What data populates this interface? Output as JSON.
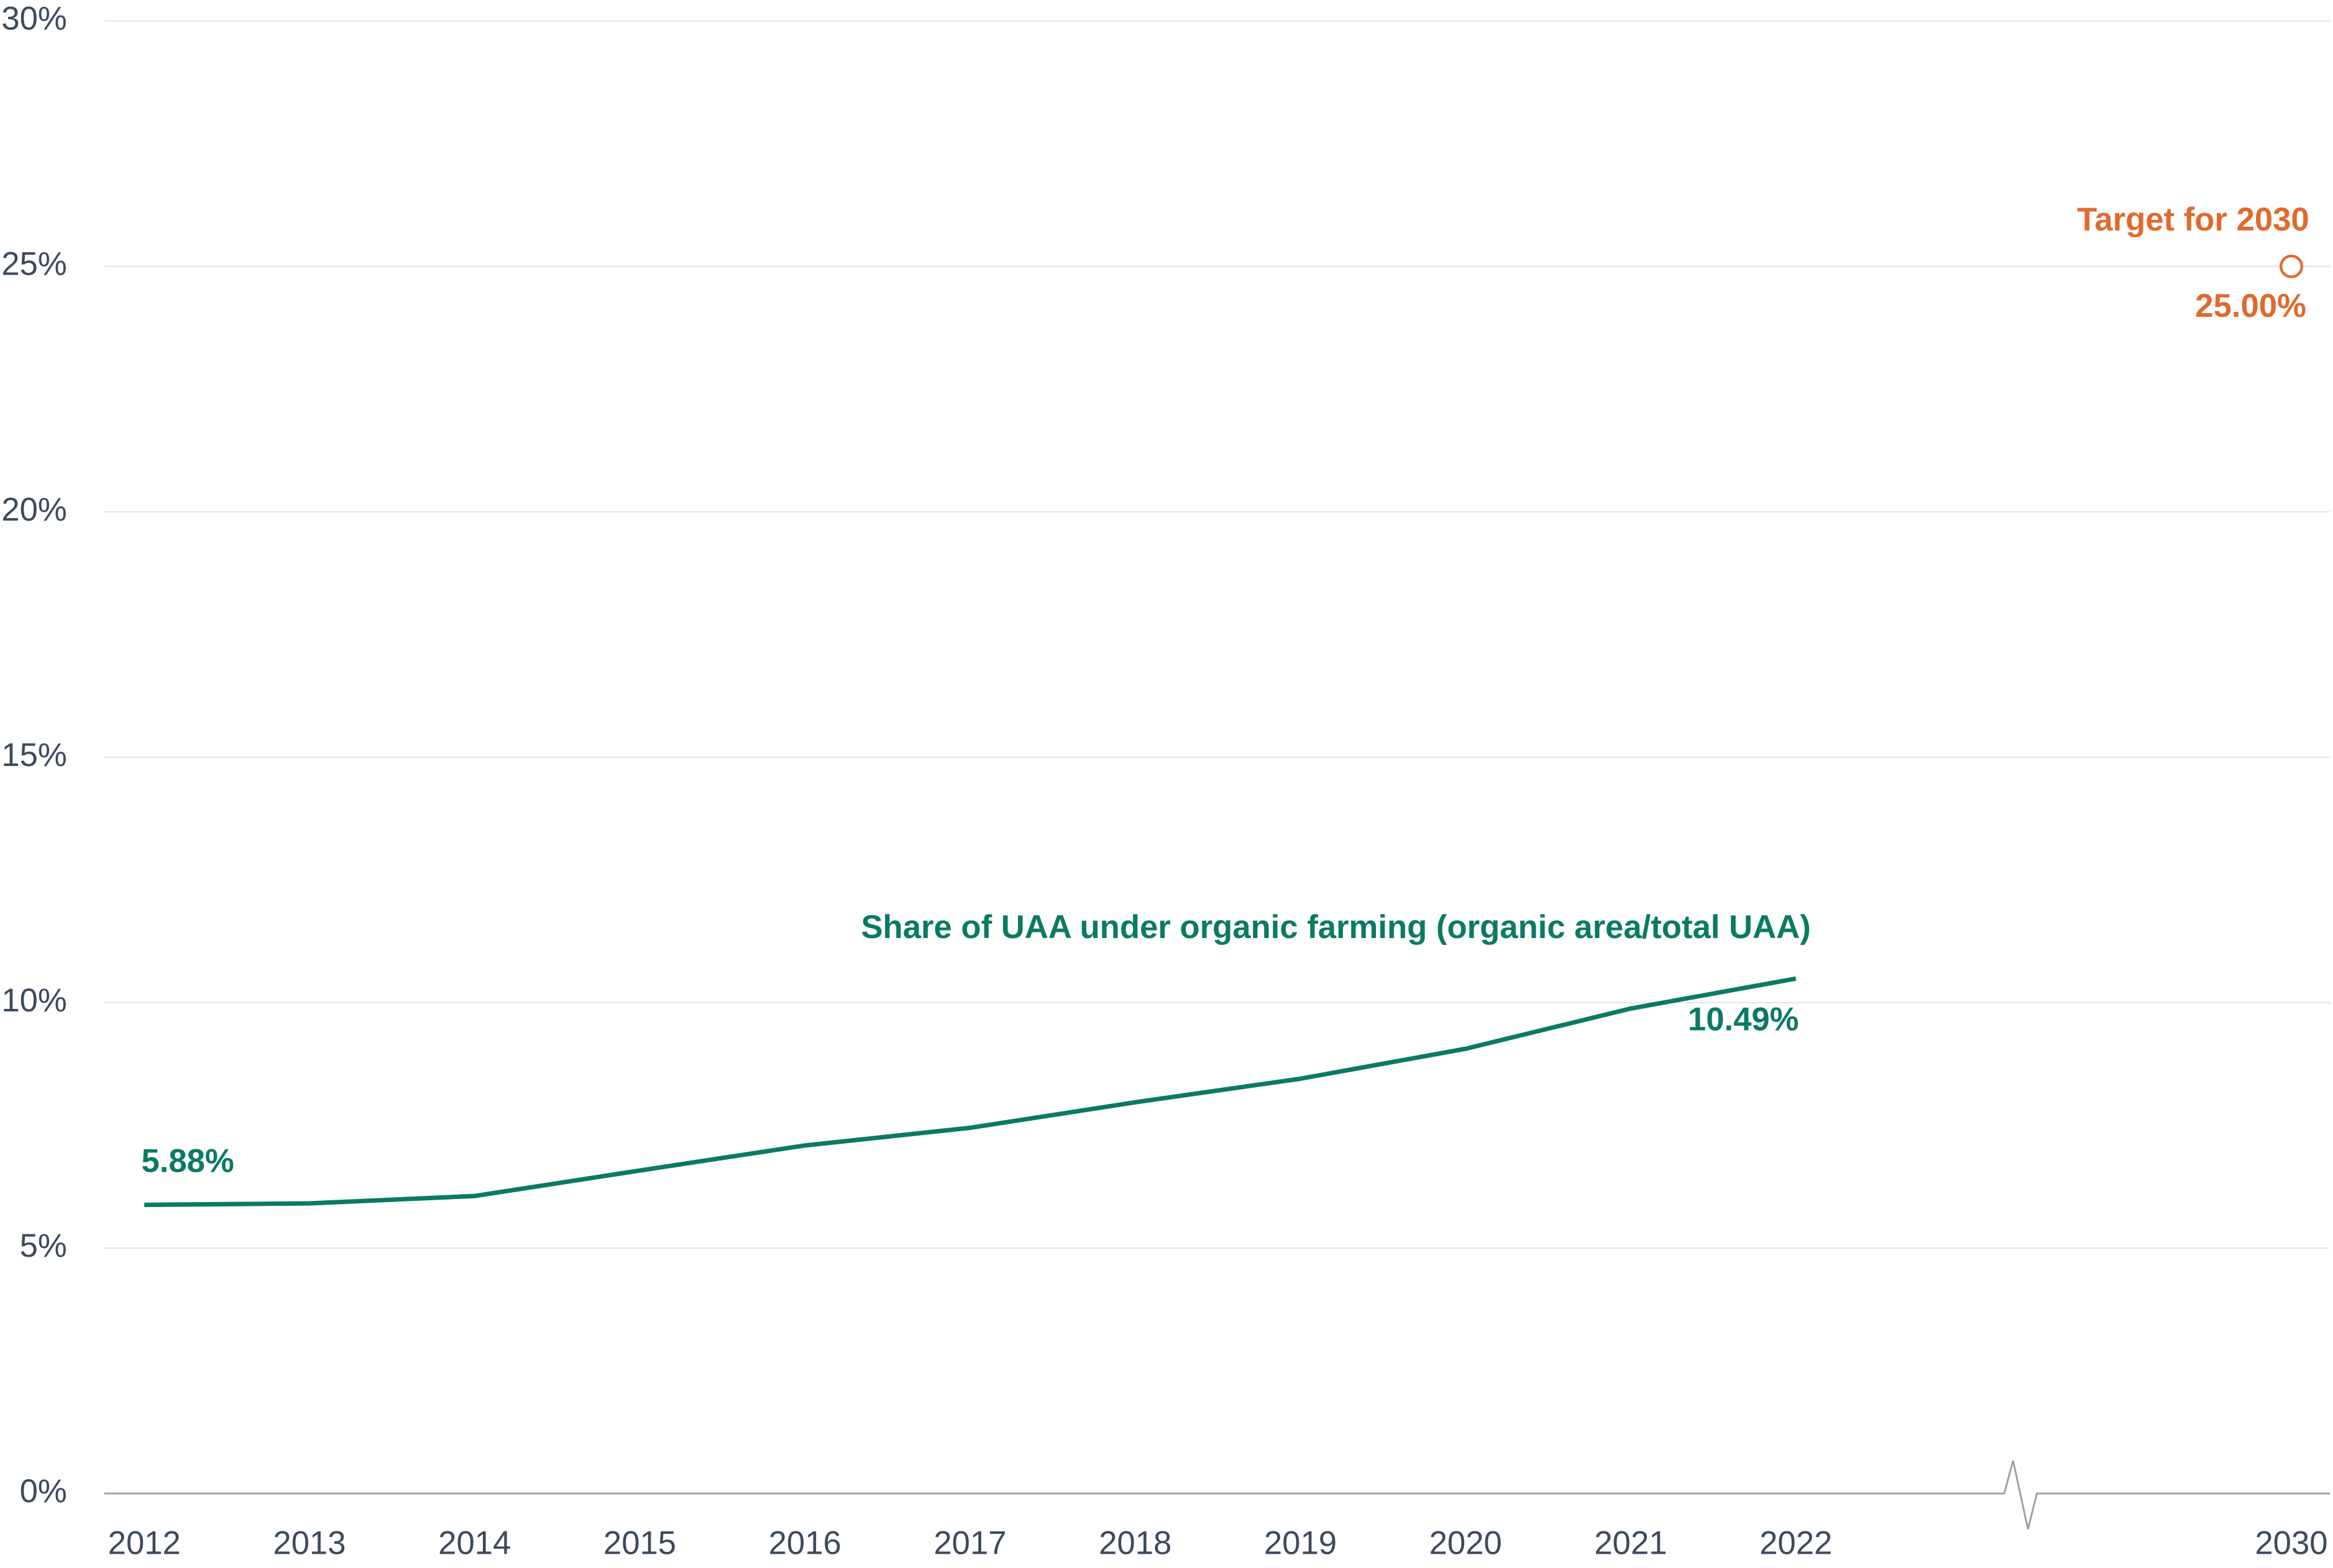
{
  "chart_data": {
    "type": "line",
    "categories": [
      "2012",
      "2013",
      "2014",
      "2015",
      "2016",
      "2017",
      "2018",
      "2019",
      "2020",
      "2021",
      "2022",
      "2030"
    ],
    "series": [
      {
        "name": "Share of UAA under organic farming (organic area/total UAA)",
        "color": "#0b7a63",
        "values": [
          5.88,
          5.91,
          6.06,
          6.58,
          7.09,
          7.45,
          7.97,
          8.45,
          9.06,
          9.88,
          10.49,
          null
        ],
        "value_labels": [
          "5.88%",
          null,
          null,
          null,
          null,
          null,
          null,
          null,
          null,
          null,
          "10.49%",
          null
        ]
      },
      {
        "name": "Target for 2030",
        "color": "#e06a2e",
        "values": [
          null,
          null,
          null,
          null,
          null,
          null,
          null,
          null,
          null,
          null,
          null,
          25
        ],
        "value_labels": [
          null,
          null,
          null,
          null,
          null,
          null,
          null,
          null,
          null,
          null,
          null,
          "25.00%"
        ]
      }
    ],
    "ylim": [
      0,
      30
    ],
    "yticks": [
      {
        "value": 0,
        "label": "0%"
      },
      {
        "value": 5,
        "label": "5%"
      },
      {
        "value": 10,
        "label": "10%"
      },
      {
        "value": 15,
        "label": "15%"
      },
      {
        "value": 20,
        "label": "20%"
      },
      {
        "value": 25,
        "label": "25%"
      },
      {
        "value": 30,
        "label": "30%"
      }
    ],
    "grid": true
  }
}
